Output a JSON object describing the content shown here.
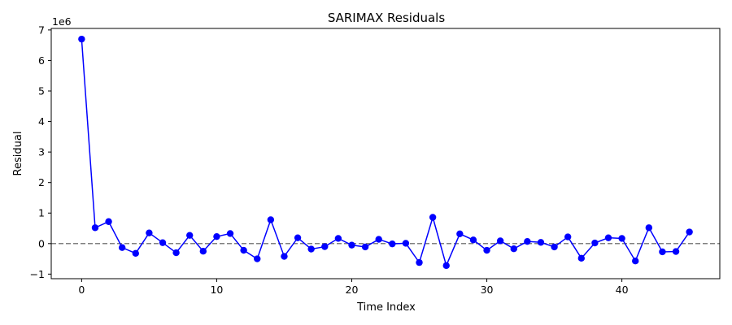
{
  "chart_data": {
    "type": "line",
    "title": "SARIMAX Residuals",
    "xlabel": "Time Index",
    "ylabel": "Residual",
    "y_offset_label": "1e6",
    "y_scale_multiplier": 1000000,
    "xlim": [
      -2.25,
      47.25
    ],
    "ylim": [
      -1150000,
      7050000
    ],
    "x_ticks": [
      0,
      10,
      20,
      30,
      40
    ],
    "y_ticks": [
      -1000000,
      0,
      1000000,
      2000000,
      3000000,
      4000000,
      5000000,
      6000000,
      7000000
    ],
    "x_tick_labels": [
      "0",
      "10",
      "20",
      "30",
      "40"
    ],
    "y_tick_labels": [
      "−1",
      "0",
      "1",
      "2",
      "3",
      "4",
      "5",
      "6",
      "7"
    ],
    "grid": false,
    "reference_line": {
      "y": 0,
      "style": "dashed",
      "color": "#808080"
    },
    "series": [
      {
        "color": "#0000ff",
        "marker": "circle",
        "x": [
          0,
          1,
          2,
          3,
          4,
          5,
          6,
          7,
          8,
          9,
          10,
          11,
          12,
          13,
          14,
          15,
          16,
          17,
          18,
          19,
          20,
          21,
          22,
          23,
          24,
          25,
          26,
          27,
          28,
          29,
          30,
          31,
          32,
          33,
          34,
          35,
          36,
          37,
          38,
          39,
          40,
          41,
          42,
          43,
          44,
          45
        ],
        "y": [
          6700000,
          520000,
          720000,
          -130000,
          -320000,
          350000,
          30000,
          -300000,
          270000,
          -250000,
          230000,
          330000,
          -220000,
          -500000,
          780000,
          -420000,
          190000,
          -180000,
          -100000,
          170000,
          -50000,
          -110000,
          140000,
          -10000,
          10000,
          -620000,
          860000,
          -720000,
          320000,
          120000,
          -220000,
          90000,
          -170000,
          70000,
          40000,
          -110000,
          220000,
          -480000,
          20000,
          190000,
          170000,
          -570000,
          520000,
          -270000,
          -260000,
          380000
        ]
      }
    ]
  }
}
